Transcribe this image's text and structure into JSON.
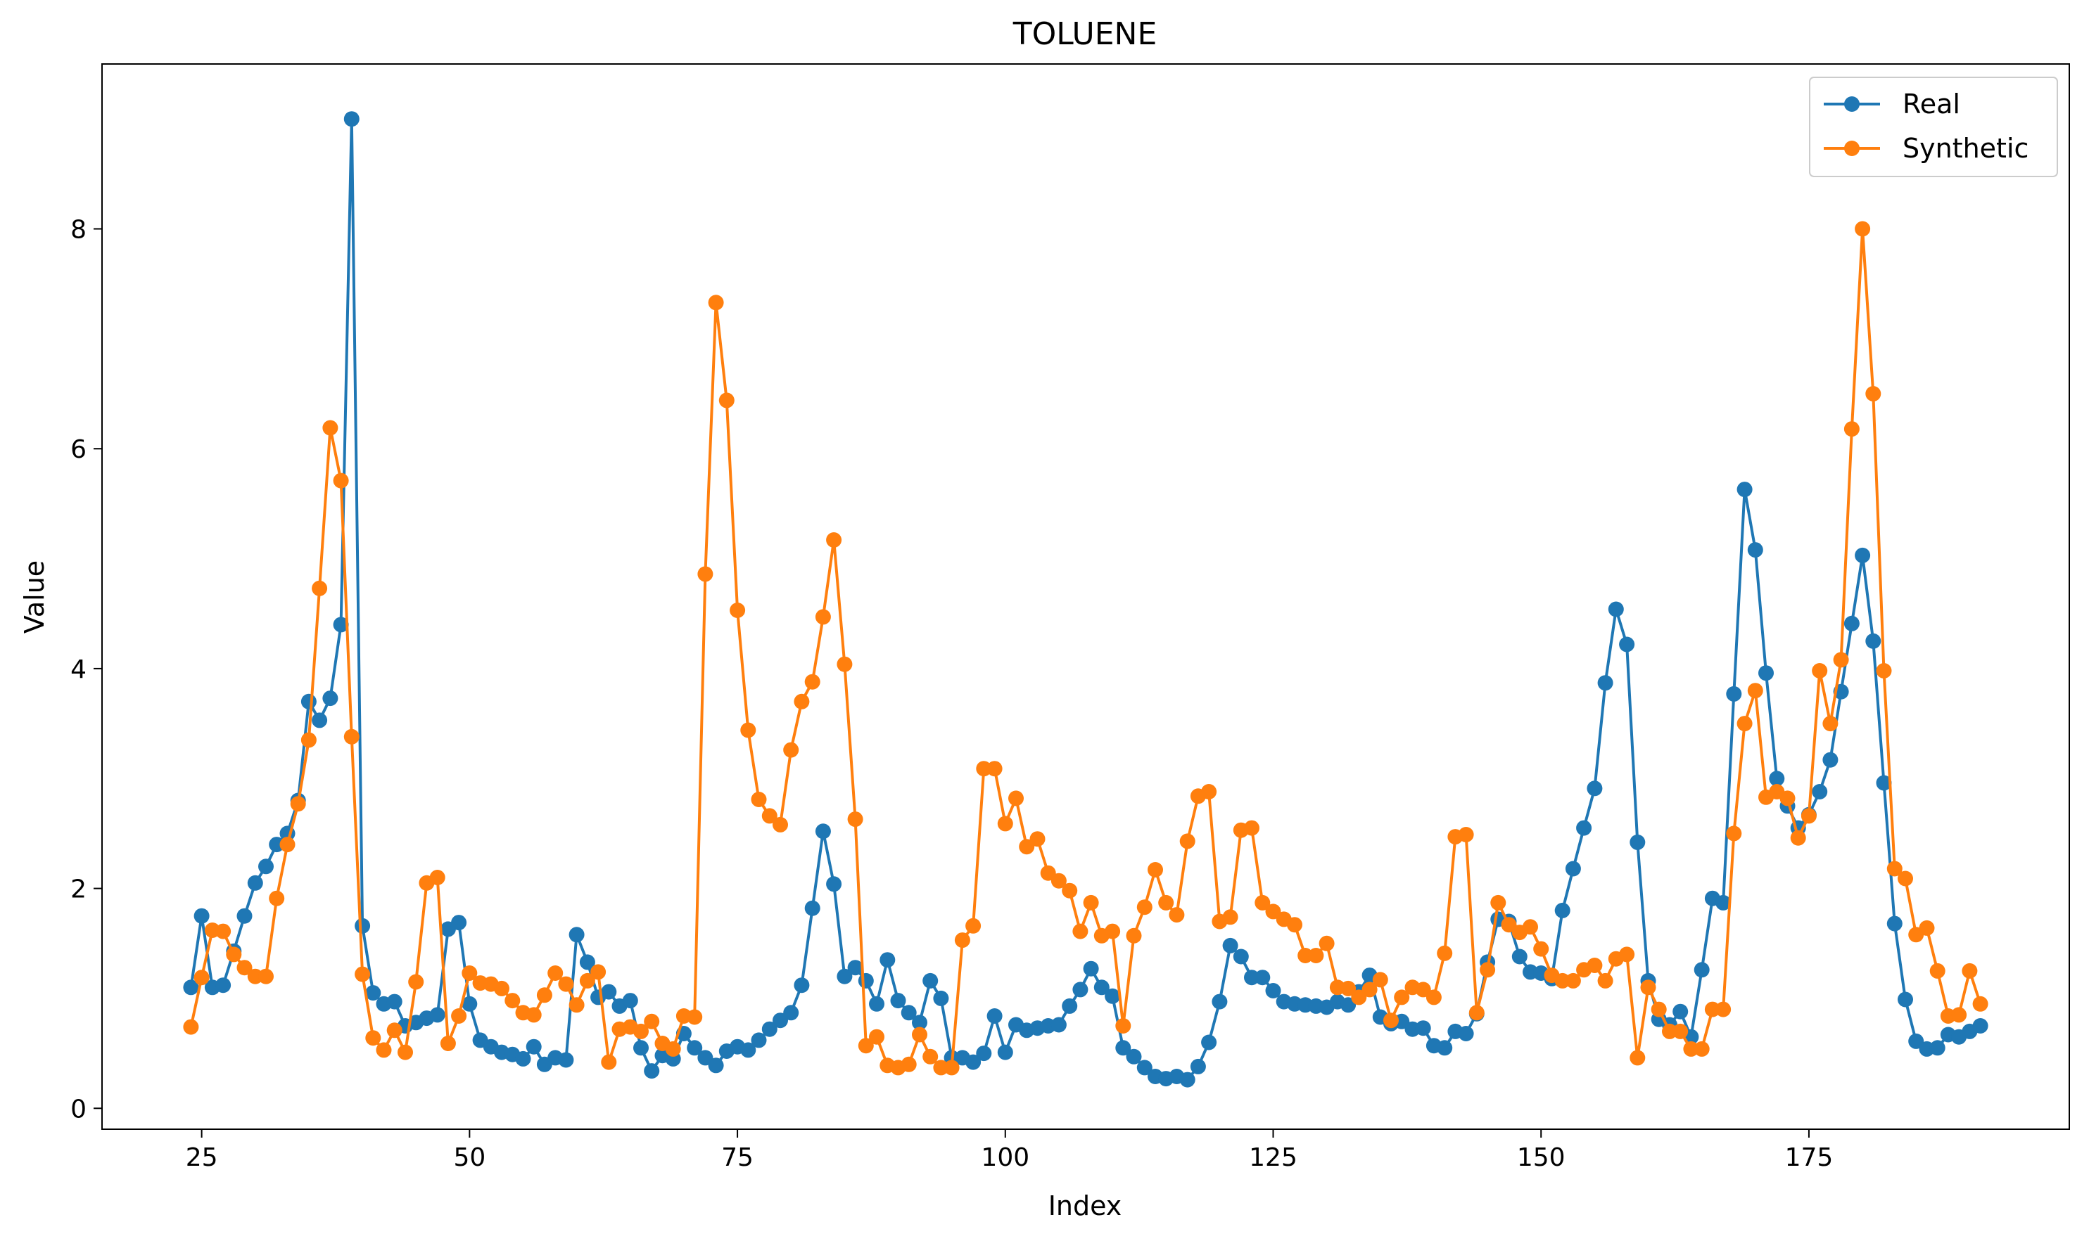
{
  "chart_data": {
    "type": "line",
    "title": "TOLUENE",
    "xlabel": "Index",
    "ylabel": "Value",
    "xlim": [
      15.7,
      199.3
    ],
    "ylim": [
      -0.19,
      9.5
    ],
    "xticks": [
      25,
      50,
      75,
      100,
      125,
      150,
      175
    ],
    "yticks": [
      0,
      2,
      4,
      6,
      8
    ],
    "legend_position": "top-right",
    "marker": "circle",
    "x": [
      24,
      25,
      26,
      27,
      28,
      29,
      30,
      31,
      32,
      33,
      34,
      35,
      36,
      37,
      38,
      39,
      40,
      41,
      42,
      43,
      44,
      45,
      46,
      47,
      48,
      49,
      50,
      51,
      52,
      53,
      54,
      55,
      56,
      57,
      58,
      59,
      60,
      61,
      62,
      63,
      64,
      65,
      66,
      67,
      68,
      69,
      70,
      71,
      72,
      73,
      74,
      75,
      76,
      77,
      78,
      79,
      80,
      81,
      82,
      83,
      84,
      85,
      86,
      87,
      88,
      89,
      90,
      91,
      92,
      93,
      94,
      95,
      96,
      97,
      98,
      99,
      100,
      101,
      102,
      103,
      104,
      105,
      106,
      107,
      108,
      109,
      110,
      111,
      112,
      113,
      114,
      115,
      116,
      117,
      118,
      119,
      120,
      121,
      122,
      123,
      124,
      125,
      126,
      127,
      128,
      129,
      130,
      131,
      132,
      133,
      134,
      135,
      136,
      137,
      138,
      139,
      140,
      141,
      142,
      143,
      144,
      145,
      146,
      147,
      148,
      149,
      150,
      151,
      152,
      153,
      154,
      155,
      156,
      157,
      158,
      159,
      160,
      161,
      162,
      163,
      164,
      165,
      166,
      167,
      168,
      169,
      170,
      171,
      172,
      173,
      174,
      175,
      176,
      177,
      178,
      179,
      180,
      181,
      182,
      183,
      184,
      185,
      186,
      187,
      188,
      189,
      190,
      191
    ],
    "series": [
      {
        "name": "Real",
        "color": "#1f77b4",
        "values": [
          1.1,
          1.75,
          1.1,
          1.12,
          1.43,
          1.75,
          2.05,
          2.2,
          2.4,
          2.5,
          2.8,
          3.7,
          3.53,
          3.73,
          4.4,
          9.0,
          1.66,
          1.05,
          0.95,
          0.97,
          0.75,
          0.78,
          0.82,
          0.85,
          1.63,
          1.69,
          0.95,
          0.62,
          0.56,
          0.51,
          0.49,
          0.45,
          0.56,
          0.4,
          0.46,
          0.44,
          1.58,
          1.33,
          1.01,
          1.06,
          0.93,
          0.98,
          0.55,
          0.34,
          0.48,
          0.45,
          0.68,
          0.55,
          0.46,
          0.39,
          0.52,
          0.56,
          0.53,
          0.62,
          0.72,
          0.8,
          0.87,
          1.12,
          1.82,
          2.52,
          2.04,
          1.2,
          1.28,
          1.16,
          0.95,
          1.35,
          0.98,
          0.87,
          0.78,
          1.16,
          1.0,
          0.46,
          0.46,
          0.42,
          0.5,
          0.84,
          0.51,
          0.76,
          0.71,
          0.73,
          0.75,
          0.76,
          0.93,
          1.08,
          1.27,
          1.1,
          1.02,
          0.55,
          0.47,
          0.37,
          0.29,
          0.27,
          0.29,
          0.26,
          0.38,
          0.6,
          0.97,
          1.48,
          1.38,
          1.19,
          1.19,
          1.07,
          0.97,
          0.95,
          0.94,
          0.93,
          0.92,
          0.97,
          0.94,
          1.06,
          1.21,
          0.83,
          0.77,
          0.79,
          0.72,
          0.73,
          0.57,
          0.55,
          0.7,
          0.68,
          0.86,
          1.33,
          1.72,
          1.7,
          1.38,
          1.24,
          1.23,
          1.18,
          1.8,
          2.18,
          2.55,
          2.91,
          3.87,
          4.54,
          4.22,
          2.42,
          1.16,
          0.81,
          0.76,
          0.88,
          0.65,
          1.26,
          1.91,
          1.87,
          3.77,
          5.63,
          5.08,
          3.96,
          3.0,
          2.75,
          2.55,
          2.67,
          2.88,
          3.17,
          3.79,
          4.41,
          5.03,
          4.25,
          2.96,
          1.68,
          0.99,
          0.61,
          0.54,
          0.55,
          0.67,
          0.65,
          0.7,
          0.75
        ]
      },
      {
        "name": "Synthetic",
        "color": "#ff7f0e",
        "values": [
          0.74,
          1.19,
          1.62,
          1.61,
          1.4,
          1.28,
          1.2,
          1.2,
          1.91,
          2.4,
          2.77,
          3.35,
          4.73,
          6.19,
          5.71,
          3.38,
          1.22,
          0.64,
          0.53,
          0.71,
          0.51,
          1.15,
          2.05,
          2.1,
          0.59,
          0.84,
          1.23,
          1.14,
          1.13,
          1.09,
          0.98,
          0.87,
          0.85,
          1.03,
          1.23,
          1.13,
          0.94,
          1.16,
          1.24,
          0.42,
          0.72,
          0.74,
          0.7,
          0.79,
          0.59,
          0.54,
          0.84,
          0.83,
          4.86,
          7.33,
          6.44,
          4.53,
          3.44,
          2.81,
          2.66,
          2.58,
          3.26,
          3.7,
          3.88,
          4.47,
          5.17,
          4.04,
          2.63,
          0.57,
          0.65,
          0.39,
          0.37,
          0.4,
          0.67,
          0.47,
          0.37,
          0.37,
          1.53,
          1.66,
          3.09,
          3.09,
          2.59,
          2.82,
          2.38,
          2.45,
          2.14,
          2.07,
          1.98,
          1.61,
          1.87,
          1.57,
          1.61,
          0.75,
          1.57,
          1.83,
          2.17,
          1.87,
          1.76,
          2.43,
          2.84,
          2.88,
          1.7,
          1.74,
          2.53,
          2.55,
          1.87,
          1.79,
          1.72,
          1.67,
          1.39,
          1.39,
          1.5,
          1.1,
          1.09,
          1.01,
          1.08,
          1.17,
          0.8,
          1.01,
          1.1,
          1.08,
          1.01,
          1.41,
          2.47,
          2.49,
          0.87,
          1.26,
          1.87,
          1.67,
          1.6,
          1.65,
          1.45,
          1.21,
          1.16,
          1.16,
          1.26,
          1.3,
          1.16,
          1.36,
          1.4,
          0.46,
          1.1,
          0.9,
          0.7,
          0.7,
          0.54,
          0.54,
          0.9,
          0.9,
          2.5,
          3.5,
          3.8,
          2.83,
          2.88,
          2.82,
          2.46,
          2.66,
          3.98,
          3.5,
          4.08,
          6.18,
          8.0,
          6.5,
          3.98,
          2.18,
          2.09,
          1.58,
          1.64,
          1.25,
          0.84,
          0.85,
          1.25,
          0.95
        ]
      }
    ]
  }
}
